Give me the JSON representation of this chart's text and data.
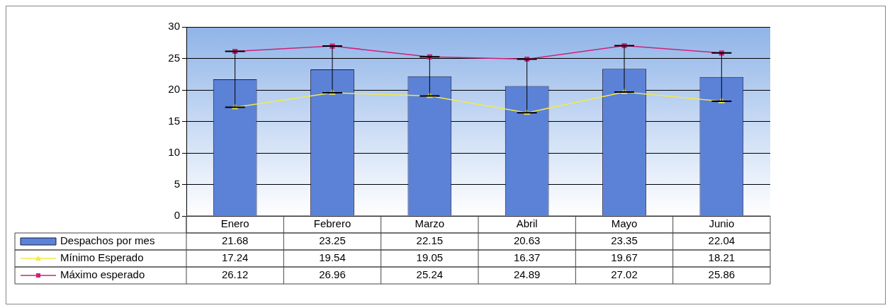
{
  "chart_data": {
    "type": "bar",
    "categories": [
      "Enero",
      "Febrero",
      "Marzo",
      "Abril",
      "Mayo",
      "Junio"
    ],
    "series": [
      {
        "name": "Despachos por mes",
        "color": "#5b82d6",
        "values": [
          21.68,
          23.25,
          22.15,
          20.63,
          23.35,
          22.04
        ],
        "errors": [
          [
            17.24,
            26.12
          ],
          [
            19.54,
            26.96
          ],
          [
            19.05,
            25.24
          ],
          [
            16.37,
            24.89
          ],
          [
            19.67,
            27.02
          ],
          [
            18.21,
            25.86
          ]
        ]
      },
      {
        "name": "Mínimo Esperado",
        "type": "line",
        "color": "#f2e84a",
        "marker": "triangle",
        "values": [
          17.24,
          19.54,
          19.05,
          16.37,
          19.67,
          18.21
        ]
      },
      {
        "name": "Máximo esperado",
        "type": "line",
        "color": "#d0207a",
        "marker": "square",
        "values": [
          26.12,
          26.96,
          25.24,
          24.89,
          27.02,
          25.86
        ]
      }
    ],
    "ylim": [
      0,
      30
    ],
    "yticks": [
      0,
      5,
      10,
      15,
      20,
      25,
      30
    ],
    "grid": "y",
    "legend": "bottom left",
    "data_labels": true
  }
}
